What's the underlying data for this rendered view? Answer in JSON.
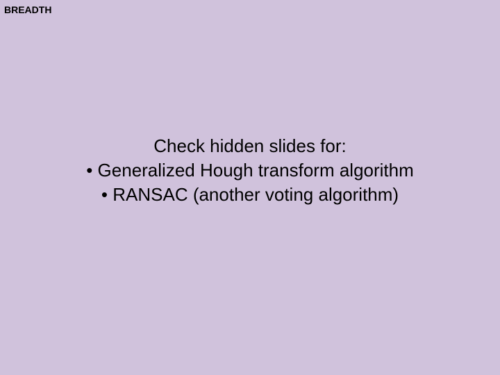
{
  "header": {
    "label": "BREADTH"
  },
  "slide": {
    "intro": "Check hidden slides for:",
    "bullets": [
      "Generalized Hough transform algorithm",
      "RANSAC (another voting algorithm)"
    ]
  },
  "styling": {
    "background_color": "#d0c2dc",
    "text_color": "#000000",
    "header_fontsize": 14,
    "body_fontsize": 26,
    "font_family": "Arial"
  }
}
